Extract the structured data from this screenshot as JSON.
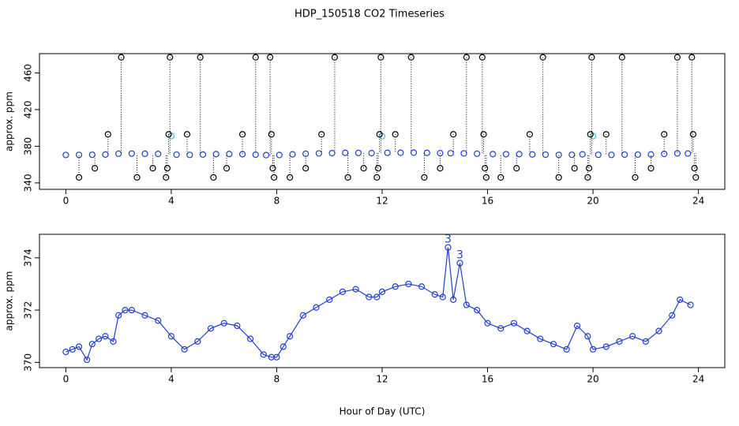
{
  "chart_data": [
    {
      "type": "scatter",
      "title": "HDP_150518  CO2 Timeseries",
      "y_label": "approx. ppm",
      "xlim": [
        -1,
        25
      ],
      "ylim": [
        333,
        481
      ],
      "xticks": [
        0,
        4,
        8,
        12,
        16,
        20,
        24
      ],
      "yticks": [
        340,
        380,
        420,
        460
      ],
      "series": [
        {
          "color": "#1f3fd0",
          "marker": "circle",
          "x": [
            0,
            0.5,
            1,
            1.5,
            2,
            2.5,
            3,
            3.5,
            4.2,
            4.7,
            5.2,
            5.7,
            6.2,
            6.7,
            7.2,
            7.6,
            8.1,
            8.6,
            9.1,
            9.6,
            10.1,
            10.6,
            11.1,
            11.6,
            12.2,
            12.7,
            13.2,
            13.7,
            14.2,
            14.6,
            15.1,
            15.6,
            16.2,
            16.7,
            17.2,
            17.7,
            18.2,
            18.7,
            19.2,
            19.6,
            20.2,
            20.7,
            21.2,
            21.7,
            22.2,
            22.7,
            23.2,
            23.6
          ],
          "values": [
            370.5,
            370.6,
            370.7,
            371.0,
            371.9,
            372.0,
            371.8,
            371.6,
            370.8,
            370.6,
            371.0,
            371.4,
            371.5,
            371.3,
            370.8,
            370.3,
            370.4,
            371.2,
            371.9,
            372.2,
            372.5,
            372.8,
            372.7,
            372.5,
            372.8,
            372.9,
            373.0,
            372.8,
            372.5,
            372.4,
            372.2,
            371.9,
            371.4,
            371.3,
            371.4,
            371.1,
            370.8,
            370.6,
            370.7,
            371.2,
            370.7,
            370.6,
            370.9,
            370.9,
            371.1,
            371.6,
            372.2,
            372.1
          ]
        },
        {
          "color": "#30c8d8",
          "marker": "circle",
          "x": [
            4,
            12,
            20
          ],
          "values": [
            391,
            391,
            391
          ]
        },
        {
          "color": "#000000",
          "marker": "circle",
          "drop_lines": true,
          "x": [
            0.5,
            1.1,
            1.6,
            2.1,
            2.7,
            3.3,
            3.8,
            3.85,
            3.9,
            3.95,
            4.6,
            5.1,
            5.6,
            6.1,
            6.7,
            7.2,
            7.75,
            7.8,
            7.85,
            7.9,
            8.5,
            9.1,
            9.7,
            10.2,
            10.7,
            11.3,
            11.8,
            11.85,
            11.9,
            11.95,
            12.5,
            13.1,
            13.6,
            14.2,
            14.7,
            15.2,
            15.8,
            15.85,
            15.9,
            15.95,
            16.5,
            17.1,
            17.6,
            18.1,
            18.7,
            19.3,
            19.8,
            19.85,
            19.9,
            19.95,
            20.5,
            21.1,
            21.6,
            22.2,
            22.7,
            23.2,
            23.75,
            23.8,
            23.85,
            23.9
          ],
          "values": [
            346,
            356,
            393,
            477,
            346,
            356,
            346,
            356,
            393,
            477,
            393,
            477,
            346,
            356,
            393,
            477,
            477,
            393,
            356,
            346,
            346,
            356,
            393,
            477,
            346,
            356,
            346,
            356,
            393,
            477,
            393,
            477,
            346,
            356,
            393,
            477,
            477,
            393,
            356,
            346,
            346,
            356,
            393,
            477,
            346,
            356,
            346,
            356,
            393,
            477,
            393,
            477,
            346,
            356,
            393,
            477,
            477,
            393,
            356,
            346
          ]
        }
      ]
    },
    {
      "type": "line",
      "y_label": "approx. ppm",
      "x_label": "Hour of Day (UTC)",
      "xlim": [
        -1,
        25
      ],
      "ylim": [
        369.8,
        374.9
      ],
      "xticks": [
        0,
        4,
        8,
        12,
        16,
        20,
        24
      ],
      "yticks": [
        370,
        372,
        374
      ],
      "series": [
        {
          "color": "#1f3fd0",
          "marker": "circle",
          "x": [
            0,
            0.25,
            0.5,
            0.8,
            1,
            1.25,
            1.5,
            1.8,
            2,
            2.25,
            2.5,
            3,
            3.5,
            4,
            4.5,
            5,
            5.5,
            6,
            6.5,
            7,
            7.5,
            7.8,
            8,
            8.25,
            8.5,
            9,
            9.5,
            10,
            10.5,
            11,
            11.5,
            11.8,
            12,
            12.5,
            13,
            13.5,
            14,
            14.3,
            14.5,
            14.7,
            14.95,
            15.2,
            15.6,
            16,
            16.5,
            17,
            17.5,
            18,
            18.5,
            19,
            19.4,
            19.8,
            20,
            20.5,
            21,
            21.5,
            22,
            22.5,
            23,
            23.3,
            23.7
          ],
          "values": [
            370.4,
            370.5,
            370.6,
            370.1,
            370.7,
            370.9,
            371.0,
            370.8,
            371.8,
            372.0,
            372.0,
            371.8,
            371.6,
            371.0,
            370.5,
            370.8,
            371.3,
            371.5,
            371.4,
            370.9,
            370.3,
            370.2,
            370.2,
            370.6,
            371.0,
            371.8,
            372.1,
            372.4,
            372.7,
            372.8,
            372.5,
            372.5,
            372.7,
            372.9,
            373.0,
            372.9,
            372.6,
            372.5,
            374.4,
            372.4,
            373.8,
            372.2,
            372.0,
            371.5,
            371.3,
            371.5,
            371.2,
            370.9,
            370.7,
            370.5,
            371.4,
            371.0,
            370.5,
            370.6,
            370.8,
            371.0,
            370.8,
            371.2,
            371.8,
            372.4,
            372.2
          ]
        }
      ],
      "annotations": [
        {
          "x": 14.5,
          "y": 374.4,
          "text": "3"
        },
        {
          "x": 14.95,
          "y": 373.8,
          "text": "3"
        }
      ]
    }
  ]
}
